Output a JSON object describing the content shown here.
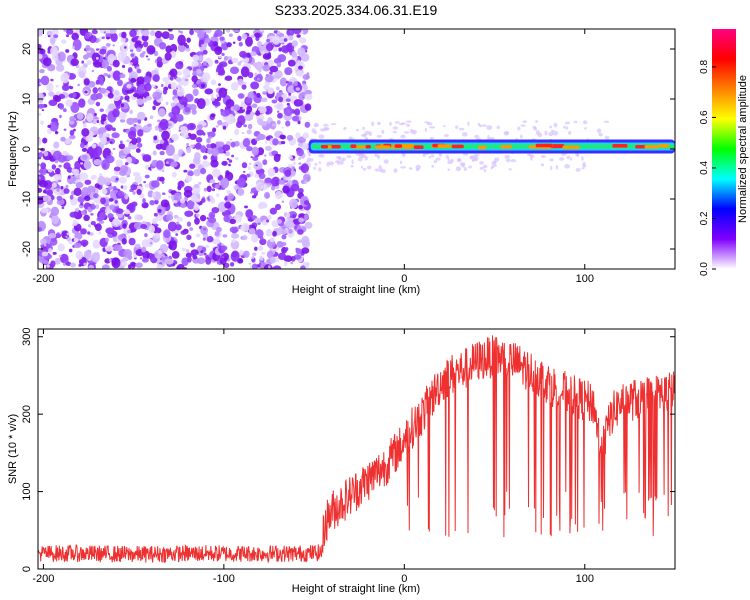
{
  "title": "S233.2025.334.06.31.E19",
  "chart_data": [
    {
      "type": "heatmap",
      "name": "spectrogram",
      "xlabel": "Height of straight line (km)",
      "ylabel": "Frequency (Hz)",
      "xlim": [
        -203,
        150
      ],
      "ylim": [
        -24,
        24
      ],
      "xticks": [
        -200,
        -100,
        0,
        100
      ],
      "yticks": [
        -20,
        -10,
        0,
        10,
        20
      ],
      "noise_region_end_km": -53,
      "signal_band_center_hz": 0.5,
      "colorbar": {
        "label": "Normalized spectral amplitude",
        "range": [
          0,
          0.95
        ],
        "ticks": [
          "0.0",
          "0.2",
          "0.4",
          "0.6",
          "0.8"
        ],
        "colors": [
          "#ffffff",
          "#8000ff",
          "#0000ff",
          "#00ffff",
          "#00ff00",
          "#ffff00",
          "#ff8000",
          "#ff0000",
          "#ff0080"
        ]
      }
    },
    {
      "type": "line",
      "name": "snr",
      "xlabel": "Height of straight line (km)",
      "ylabel": "SNR (10 * v/v)",
      "xlim": [
        -203,
        150
      ],
      "ylim": [
        0,
        310
      ],
      "xticks": [
        -200,
        -100,
        0,
        100
      ],
      "yticks": [
        0,
        100,
        200,
        300
      ],
      "color": "#ee3030",
      "x": [
        -203,
        -180,
        -150,
        -120,
        -90,
        -60,
        -46,
        -44,
        -40,
        -30,
        -20,
        -15,
        -10,
        -5,
        0,
        5,
        10,
        15,
        20,
        25,
        30,
        35,
        40,
        45,
        50,
        55,
        60,
        65,
        70,
        75,
        80,
        85,
        90,
        95,
        100,
        105,
        108,
        110,
        115,
        120,
        130,
        140,
        150
      ],
      "values": [
        20,
        20,
        19,
        20,
        20,
        20,
        21,
        60,
        75,
        95,
        115,
        125,
        135,
        150,
        165,
        185,
        200,
        220,
        240,
        250,
        255,
        260,
        268,
        272,
        275,
        272,
        268,
        262,
        255,
        248,
        240,
        232,
        228,
        222,
        218,
        212,
        170,
        160,
        200,
        215,
        220,
        225,
        230
      ]
    }
  ]
}
